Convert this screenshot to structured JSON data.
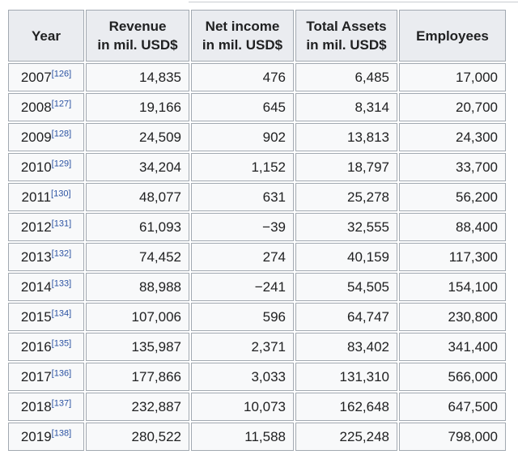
{
  "page": {
    "background": "#ffffff",
    "cropped_edge_color": "#c8ccd1"
  },
  "table": {
    "colors": {
      "header_bg": "#eaecf0",
      "cell_bg": "#f8f9fa",
      "border": "#a2a9b1",
      "text": "#202122",
      "ref_link": "#2a52a2"
    },
    "columns": [
      {
        "label": "Year",
        "sublabel": ""
      },
      {
        "label": "Revenue",
        "sublabel": "in mil. USD$"
      },
      {
        "label": "Net income",
        "sublabel": "in mil. USD$"
      },
      {
        "label": "Total Assets",
        "sublabel": "in mil. USD$"
      },
      {
        "label": "Employees",
        "sublabel": ""
      }
    ],
    "rows": [
      {
        "year": "2007",
        "ref": "[126]",
        "revenue": "14,835",
        "net_income": "476",
        "total_assets": "6,485",
        "employees": "17,000"
      },
      {
        "year": "2008",
        "ref": "[127]",
        "revenue": "19,166",
        "net_income": "645",
        "total_assets": "8,314",
        "employees": "20,700"
      },
      {
        "year": "2009",
        "ref": "[128]",
        "revenue": "24,509",
        "net_income": "902",
        "total_assets": "13,813",
        "employees": "24,300"
      },
      {
        "year": "2010",
        "ref": "[129]",
        "revenue": "34,204",
        "net_income": "1,152",
        "total_assets": "18,797",
        "employees": "33,700"
      },
      {
        "year": "2011",
        "ref": "[130]",
        "revenue": "48,077",
        "net_income": "631",
        "total_assets": "25,278",
        "employees": "56,200"
      },
      {
        "year": "2012",
        "ref": "[131]",
        "revenue": "61,093",
        "net_income": "−39",
        "total_assets": "32,555",
        "employees": "88,400"
      },
      {
        "year": "2013",
        "ref": "[132]",
        "revenue": "74,452",
        "net_income": "274",
        "total_assets": "40,159",
        "employees": "117,300"
      },
      {
        "year": "2014",
        "ref": "[133]",
        "revenue": "88,988",
        "net_income": "−241",
        "total_assets": "54,505",
        "employees": "154,100"
      },
      {
        "year": "2015",
        "ref": "[134]",
        "revenue": "107,006",
        "net_income": "596",
        "total_assets": "64,747",
        "employees": "230,800"
      },
      {
        "year": "2016",
        "ref": "[135]",
        "revenue": "135,987",
        "net_income": "2,371",
        "total_assets": "83,402",
        "employees": "341,400"
      },
      {
        "year": "2017",
        "ref": "[136]",
        "revenue": "177,866",
        "net_income": "3,033",
        "total_assets": "131,310",
        "employees": "566,000"
      },
      {
        "year": "2018",
        "ref": "[137]",
        "revenue": "232,887",
        "net_income": "10,073",
        "total_assets": "162,648",
        "employees": "647,500"
      },
      {
        "year": "2019",
        "ref": "[138]",
        "revenue": "280,522",
        "net_income": "11,588",
        "total_assets": "225,248",
        "employees": "798,000"
      }
    ]
  },
  "chart_data": {
    "type": "table",
    "title": "",
    "columns": [
      "Year",
      "Revenue in mil. USD$",
      "Net income in mil. USD$",
      "Total Assets in mil. USD$",
      "Employees"
    ],
    "years": [
      2007,
      2008,
      2009,
      2010,
      2011,
      2012,
      2013,
      2014,
      2015,
      2016,
      2017,
      2018,
      2019
    ],
    "series": [
      {
        "name": "Revenue in mil. USD$",
        "values": [
          14835,
          19166,
          24509,
          34204,
          48077,
          61093,
          74452,
          88988,
          107006,
          135987,
          177866,
          232887,
          280522
        ]
      },
      {
        "name": "Net income in mil. USD$",
        "values": [
          476,
          645,
          902,
          1152,
          631,
          -39,
          274,
          -241,
          596,
          2371,
          3033,
          10073,
          11588
        ]
      },
      {
        "name": "Total Assets in mil. USD$",
        "values": [
          6485,
          8314,
          13813,
          18797,
          25278,
          32555,
          40159,
          54505,
          64747,
          83402,
          131310,
          162648,
          225248
        ]
      },
      {
        "name": "Employees",
        "values": [
          17000,
          20700,
          24300,
          33700,
          56200,
          88400,
          117300,
          154100,
          230800,
          341400,
          566000,
          647500,
          798000
        ]
      }
    ],
    "row_references": [
      "[126]",
      "[127]",
      "[128]",
      "[129]",
      "[130]",
      "[131]",
      "[132]",
      "[133]",
      "[134]",
      "[135]",
      "[136]",
      "[137]",
      "[138]"
    ]
  }
}
